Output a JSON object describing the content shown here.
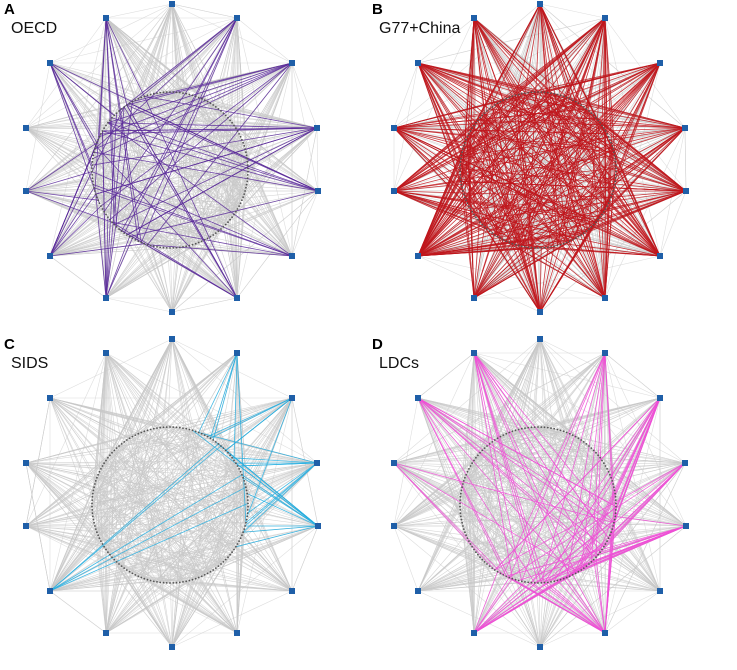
{
  "figure": {
    "panels": [
      {
        "letter": "A",
        "label": "OECD",
        "highlight_color": "#5a2a9a"
      },
      {
        "letter": "B",
        "label": "G77+China",
        "highlight_color": "#c0161c"
      },
      {
        "letter": "C",
        "label": "SIDS",
        "highlight_color": "#23aee0"
      },
      {
        "letter": "D",
        "label": "LDCs",
        "highlight_color": "#ee4fd6"
      }
    ],
    "base_edge_color": "#c8c8c8",
    "node_color": "#1f5fa8",
    "circle_color": "#555555"
  }
}
